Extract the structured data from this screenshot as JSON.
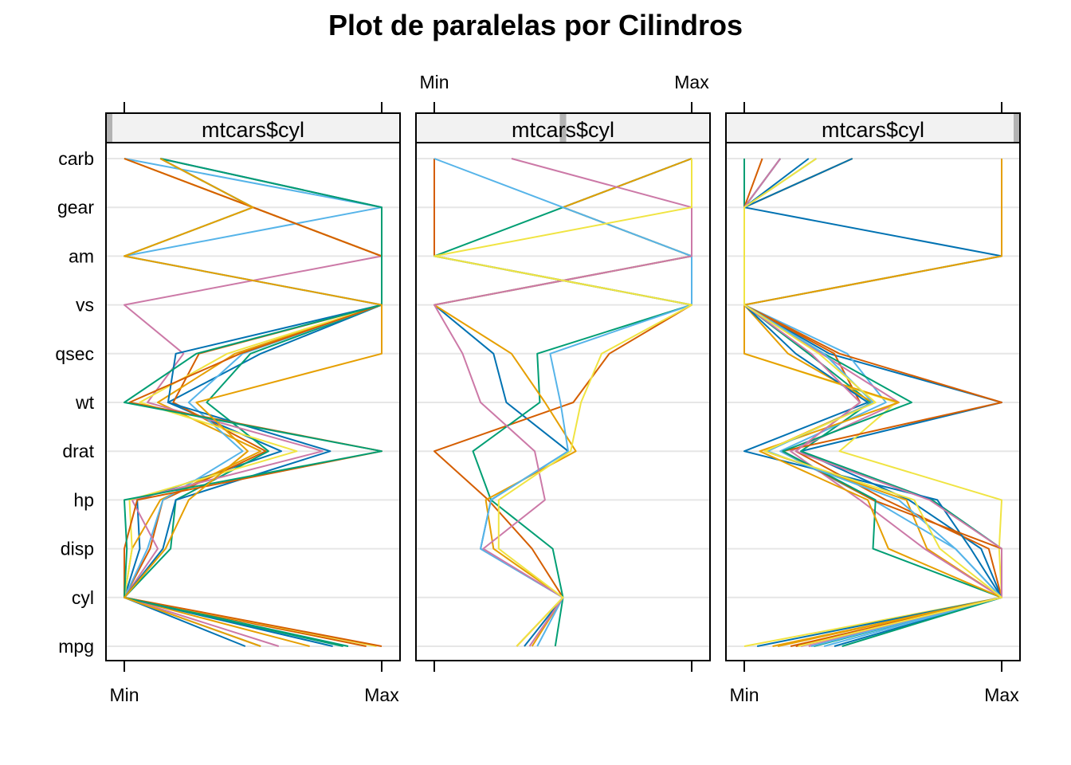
{
  "chart_data": {
    "type": "parallel-coordinates",
    "title": "Plot de paralelas por Cilindros",
    "variables": [
      "mpg",
      "cyl",
      "disp",
      "hp",
      "drat",
      "wt",
      "qsec",
      "vs",
      "am",
      "gear",
      "carb"
    ],
    "scale": {
      "min_label": "Min",
      "max_label": "Max",
      "range": [
        0,
        1
      ]
    },
    "grid": true,
    "colors": [
      "#0072B2",
      "#D55E00",
      "#009E73",
      "#E69F00",
      "#56B4E9",
      "#CC79A7",
      "#F0E442"
    ],
    "panels": [
      {
        "strip_label": "mtcars$cyl",
        "strip_level": 0,
        "lines": [
          [
            0.47,
            0,
            0.06,
            0.05,
            0.61,
            0.17,
            0.53,
            1,
            1,
            0.5,
            0.14
          ],
          [
            0.94,
            0,
            0.1,
            0.15,
            0.55,
            0.19,
            0.29,
            1,
            1,
            0.5,
            0
          ],
          [
            0.87,
            0,
            0.18,
            0.2,
            0.56,
            0.32,
            0.49,
            1,
            0,
            0.5,
            0.14
          ],
          [
            0.72,
            0,
            0.03,
            0.14,
            0.53,
            0.13,
            0.43,
            1,
            1,
            0.5,
            0
          ],
          [
            0.53,
            0,
            0.09,
            0.15,
            0.46,
            0.25,
            0.46,
            1,
            0,
            1,
            0
          ],
          [
            0.6,
            0,
            0.13,
            0.03,
            0.77,
            0.09,
            0.23,
            0,
            1,
            1,
            0.14
          ],
          [
            0.98,
            0,
            0.03,
            0.02,
            0.67,
            0.06,
            0.4,
            1,
            1,
            0.5,
            0
          ],
          [
            0.81,
            0,
            0.15,
            0.2,
            0.8,
            0.17,
            0.2,
            1,
            1,
            1,
            0.14
          ],
          [
            1.0,
            0,
            0.0,
            0.05,
            1.0,
            0.02,
            0.45,
            1,
            1,
            0.5,
            0
          ],
          [
            0.85,
            0,
            0.01,
            0.0,
            1.0,
            0.0,
            0.28,
            1,
            1,
            1,
            0.14
          ],
          [
            0.53,
            0,
            0.16,
            0.25,
            0.48,
            0.28,
            1.0,
            1,
            0,
            0.5,
            0.14
          ]
        ]
      },
      {
        "strip_label": "mtcars$cyl",
        "strip_level": 1,
        "lines": [
          [
            0.35,
            0.5,
            0.18,
            0.22,
            0.52,
            0.28,
            0.23,
            0,
            1,
            0.5,
            1
          ],
          [
            0.32,
            0.5,
            0.38,
            0.21,
            0.0,
            0.54,
            0.68,
            1,
            0,
            0,
            0
          ],
          [
            0.47,
            0.5,
            0.46,
            0.22,
            0.15,
            0.41,
            0.4,
            1,
            0,
            0.5,
            1
          ],
          [
            0.38,
            0.5,
            0.23,
            0.2,
            0.55,
            0.43,
            0.3,
            0,
            1,
            0.5,
            1
          ],
          [
            0.4,
            0.5,
            0.18,
            0.22,
            0.52,
            0.49,
            0.45,
            1,
            1,
            0.5,
            0
          ],
          [
            0.37,
            0.5,
            0.19,
            0.43,
            0.39,
            0.18,
            0.11,
            0,
            1,
            1,
            0.3
          ],
          [
            0.32,
            0.5,
            0.25,
            0.25,
            0.53,
            0.57,
            0.65,
            1,
            0,
            1,
            1
          ]
        ]
      },
      {
        "strip_label": "mtcars$cyl",
        "strip_level": 2,
        "lines": [
          [
            0.35,
            1,
            0.92,
            0.64,
            0.22,
            1.0,
            0.33,
            0,
            0,
            0,
            0.25
          ],
          [
            0.18,
            1,
            0.95,
            0.55,
            0.2,
            0.45,
            0.35,
            0,
            0,
            0,
            0.42
          ],
          [
            0.27,
            1,
            1.0,
            0.73,
            0.22,
            0.49,
            0.25,
            0,
            0,
            0,
            0
          ],
          [
            0.13,
            1,
            0.71,
            0.63,
            0.08,
            0.5,
            0.17,
            0,
            0,
            0,
            0.42
          ],
          [
            0.31,
            1,
            0.82,
            0.5,
            0.14,
            0.55,
            0.4,
            0,
            0,
            0,
            0.14
          ],
          [
            0.25,
            1,
            0.7,
            0.45,
            0.18,
            0.6,
            0.3,
            0,
            0,
            0,
            0.14
          ],
          [
            0.0,
            1,
            0.99,
            1.0,
            0.37,
            0.59,
            0.0,
            0,
            1,
            1,
            1
          ],
          [
            0.05,
            1,
            0.88,
            0.75,
            0.0,
            0.48,
            0.2,
            0,
            1,
            0,
            0.42
          ],
          [
            0.2,
            1,
            1.0,
            0.5,
            0.15,
            1.0,
            0.37,
            0,
            0,
            0,
            0.07
          ],
          [
            0.38,
            1,
            0.5,
            0.51,
            0.15,
            0.65,
            0.31,
            0,
            0,
            0,
            0.14
          ],
          [
            0.11,
            1,
            0.56,
            0.48,
            0.06,
            0.6,
            0.0,
            0,
            1,
            1,
            1
          ],
          [
            0.26,
            1,
            0.82,
            0.6,
            0.09,
            0.5,
            0.31,
            0,
            0,
            0,
            0.28
          ],
          [
            0.22,
            1,
            1.0,
            0.72,
            0.2,
            0.45,
            0.26,
            0,
            0,
            0,
            0.14
          ],
          [
            0.21,
            1,
            0.76,
            0.66,
            0.08,
            0.51,
            0.29,
            0,
            0,
            0,
            0.28
          ]
        ]
      }
    ]
  }
}
